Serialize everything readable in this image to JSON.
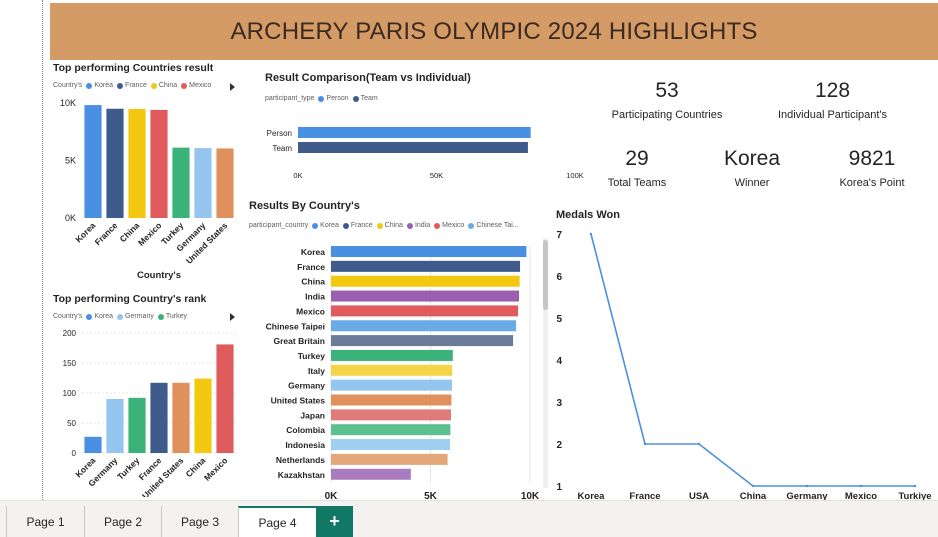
{
  "title": "ARCHERY PARIS OLYMPIC 2024 HIGHLIGHTS",
  "colors": {
    "banner": "#d59b66",
    "korea": "#4a90e2",
    "france": "#3f5b8c",
    "china": "#f2c811",
    "india": "#9b5fb0",
    "mexico": "#e05b5b",
    "chinese_taipei": "#6aaae6",
    "great_britain": "#6b7a99",
    "turkey": "#3bb27a",
    "italy": "#f5d547",
    "germany": "#93c5ef",
    "united_states": "#e0905c",
    "japan": "#e07b7b",
    "colombia": "#5cc08f",
    "indonesia": "#9fd0f0",
    "netherlands": "#e4a77a",
    "kazakhstan": "#a97bbf",
    "person": "#4a90e2",
    "team": "#3f5b8c",
    "line": "#4a90e2"
  },
  "kpis": [
    {
      "value": "53",
      "label": "Participating Countries"
    },
    {
      "value": "128",
      "label": "Individual Participant's"
    },
    {
      "value": "29",
      "label": "Total Teams"
    },
    {
      "value": "Korea",
      "label": "Winner"
    },
    {
      "value": "9821",
      "label": "Korea's Point"
    }
  ],
  "chart_data": [
    {
      "id": "top-results",
      "type": "bar",
      "title": "Top performing Countries result",
      "xlabel": "Country's",
      "ylabel": "",
      "legend_title": "Country's",
      "legend": [
        "Korea",
        "France",
        "China",
        "Mexico"
      ],
      "categories": [
        "Korea",
        "France",
        "China",
        "Mexico",
        "Turkey",
        "Germany",
        "United States"
      ],
      "values": [
        9821,
        9500,
        9480,
        9400,
        6120,
        6080,
        6050
      ],
      "ylim": [
        0,
        10000
      ],
      "yticks": [
        "0K",
        "5K",
        "10K"
      ],
      "ytick_values": [
        0,
        5000,
        10000
      ],
      "grid": false
    },
    {
      "id": "top-rank",
      "type": "bar",
      "title": "Top performing Country's rank",
      "xlabel": "",
      "ylabel": "",
      "legend_title": "Country's",
      "legend": [
        "Korea",
        "Germany",
        "Turkey"
      ],
      "categories": [
        "Korea",
        "Germany",
        "Turkey",
        "France",
        "United States",
        "China",
        "Mexico"
      ],
      "values": [
        27,
        90,
        92,
        117,
        117,
        124,
        181
      ],
      "ylim": [
        0,
        200
      ],
      "yticks": [
        "0",
        "50",
        "100",
        "150",
        "200"
      ],
      "ytick_values": [
        0,
        50,
        100,
        150,
        200
      ],
      "grid": true
    },
    {
      "id": "team-vs-individual",
      "type": "bar",
      "orientation": "horizontal",
      "title": "Result Comparison(Team vs Individual)",
      "legend_title": "participant_type",
      "legend": [
        "Person",
        "Team"
      ],
      "categories": [
        "Person",
        "Team"
      ],
      "values": [
        84000,
        83000
      ],
      "xlim": [
        0,
        100000
      ],
      "xticks": [
        "0K",
        "50K",
        "100K"
      ],
      "xtick_values": [
        0,
        50000,
        100000
      ]
    },
    {
      "id": "results-by-country",
      "type": "bar",
      "orientation": "horizontal",
      "title": "Results By Country's",
      "legend_title": "participant_country",
      "legend": [
        "Korea",
        "France",
        "China",
        "India",
        "Mexico",
        "Chinese Tai..."
      ],
      "categories": [
        "Korea",
        "France",
        "China",
        "India",
        "Mexico",
        "Chinese Taipei",
        "Great Britain",
        "Turkey",
        "Italy",
        "Germany",
        "United States",
        "Japan",
        "Colombia",
        "Indonesia",
        "Netherlands",
        "Kazakhstan"
      ],
      "values": [
        9821,
        9500,
        9480,
        9450,
        9400,
        9300,
        9150,
        6120,
        6090,
        6080,
        6050,
        6030,
        6000,
        5980,
        5860,
        4010
      ],
      "xlim": [
        0,
        10000
      ],
      "xticks": [
        "0K",
        "5K",
        "10K"
      ],
      "xtick_values": [
        0,
        5000,
        10000
      ]
    },
    {
      "id": "medals-won",
      "type": "line",
      "title": "Medals Won",
      "xlabel": "",
      "ylabel": "",
      "categories": [
        "Korea",
        "France",
        "USA",
        "China",
        "Germany",
        "Mexico",
        "Turkiye"
      ],
      "values": [
        7,
        2,
        2,
        1,
        1,
        1,
        1
      ],
      "ylim": [
        1,
        7
      ],
      "yticks": [
        "1",
        "2",
        "3",
        "4",
        "5",
        "6",
        "7"
      ],
      "ytick_values": [
        1,
        2,
        3,
        4,
        5,
        6,
        7
      ],
      "grid": false
    }
  ],
  "tabs": [
    {
      "label": "Page 1",
      "active": false
    },
    {
      "label": "Page 2",
      "active": false
    },
    {
      "label": "Page 3",
      "active": false
    },
    {
      "label": "Page 4",
      "active": true
    }
  ],
  "add_tab_label": "+"
}
